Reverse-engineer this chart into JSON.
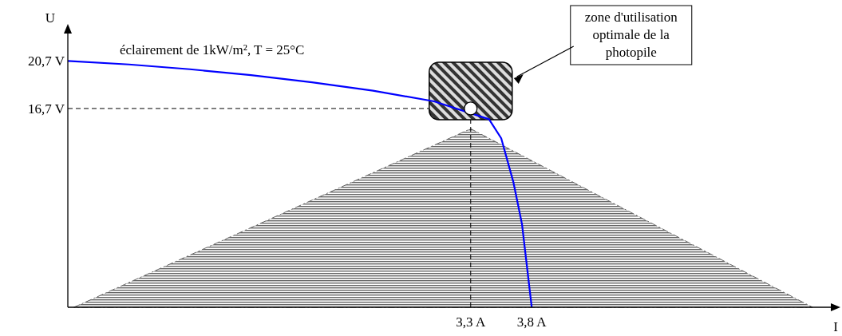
{
  "chart_data": {
    "type": "line",
    "xlabel": "I",
    "ylabel": "U",
    "x": [
      0,
      0.5,
      1,
      1.5,
      2,
      2.5,
      3,
      3.45,
      3.55,
      3.65,
      3.72,
      3.8
    ],
    "series": [
      {
        "type": "area",
        "color": "#666666",
        "x": [
          0.05,
          3.3,
          6.1
        ],
        "values": [
          0,
          15.0,
          0
        ]
      },
      {
        "name": "éclairement de 1kW/m², T = 25°C",
        "color": "#0000ff",
        "values": [
          20.7,
          20.4,
          20.0,
          19.5,
          18.9,
          18.2,
          17.3,
          15.8,
          14.2,
          10.5,
          7,
          0
        ]
      },
      {
        "type": "scatter",
        "color": "#ffffff",
        "marker": "circle",
        "x": [
          3.3
        ],
        "values": [
          16.7
        ]
      }
    ],
    "xlim": [
      0,
      6.25
    ],
    "ylim": [
      0,
      23
    ],
    "xticks": [
      {
        "value": 3.3,
        "label": "3,3 A"
      },
      {
        "value": 3.8,
        "label": "3,8 A"
      }
    ],
    "yticks": [
      {
        "value": 16.7,
        "label": "16,7 V"
      },
      {
        "value": 20.7,
        "label": "20,7 V"
      }
    ],
    "ref_lines": [
      {
        "axis": "x",
        "value": 3.3,
        "line_style": "dashed"
      },
      {
        "axis": "y",
        "value": 16.7,
        "line_style": "dashed"
      }
    ],
    "annotations": [
      "zone d'utilisation optimale de la photopile"
    ],
    "grid": false,
    "legend": false,
    "marker": "none",
    "line_style": "solid"
  }
}
